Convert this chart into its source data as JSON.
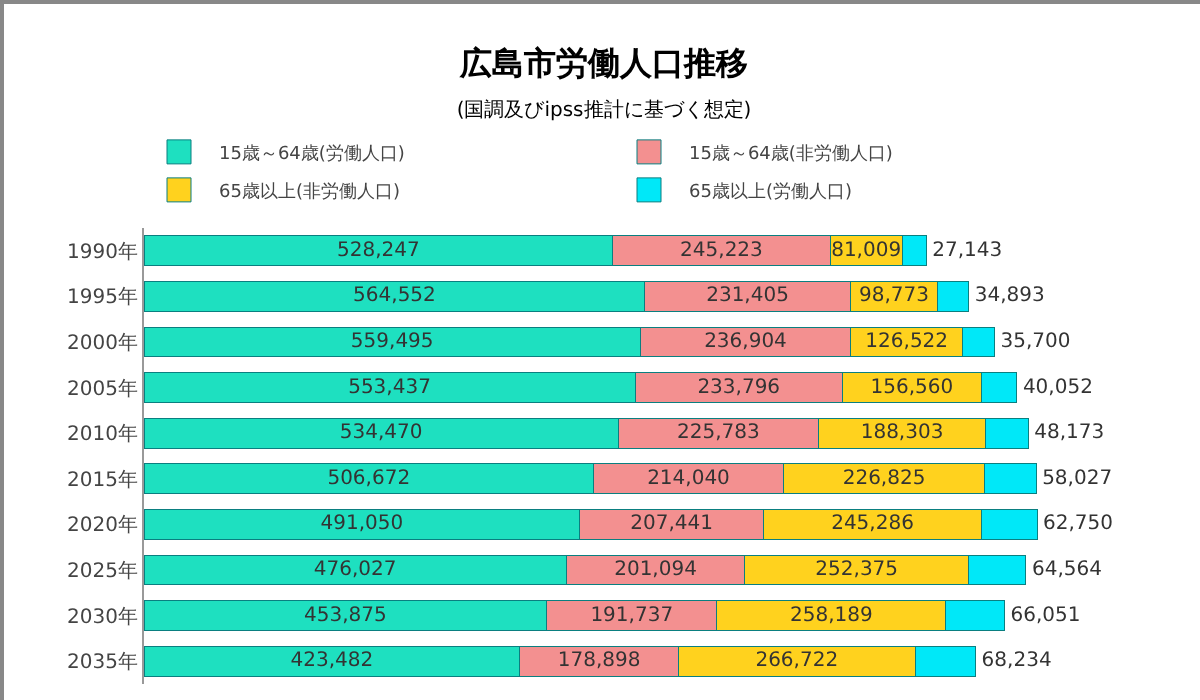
{
  "chart_data": {
    "type": "bar",
    "orientation": "horizontal",
    "stacked": true,
    "title": "広島市労働人口推移",
    "subtitle": "(国調及びipss推計に基づく想定)",
    "categories": [
      "1990年",
      "1995年",
      "2000年",
      "2005年",
      "2010年",
      "2015年",
      "2020年",
      "2025年",
      "2030年",
      "2035年"
    ],
    "series": [
      {
        "name": "15歳～64歳(労働人口)",
        "color": "#1ee0c0",
        "values": [
          528247,
          564552,
          559495,
          553437,
          534470,
          506672,
          491050,
          476027,
          453875,
          423482
        ],
        "value_labels": [
          "528,247",
          "564,552",
          "559,495",
          "553,437",
          "534,470",
          "506,672",
          "491,050",
          "476,027",
          "453,875",
          "423,482"
        ]
      },
      {
        "name": "15歳～64歳(非労働人口)",
        "color": "#f39090",
        "values": [
          245223,
          231405,
          236904,
          233796,
          225783,
          214040,
          207441,
          201094,
          191737,
          178898
        ],
        "value_labels": [
          "245,223",
          "231,405",
          "236,904",
          "233,796",
          "225,783",
          "214,040",
          "207,441",
          "201,094",
          "191,737",
          "178,898"
        ]
      },
      {
        "name": "65歳以上(非労働人口)",
        "color": "#ffd21e",
        "values": [
          81009,
          98773,
          126522,
          156560,
          188303,
          226825,
          245286,
          252375,
          258189,
          266722
        ],
        "value_labels": [
          "81,009",
          "98,773",
          "126,522",
          "156,560",
          "188,303",
          "226,825",
          "245,286",
          "252,375",
          "258,189",
          "266,722"
        ]
      },
      {
        "name": "65歳以上(労働人口)",
        "color": "#00e8f8",
        "values": [
          27143,
          34893,
          35700,
          40052,
          48173,
          58027,
          62750,
          64564,
          66051,
          68234
        ],
        "value_labels": [
          "27,143",
          "34,893",
          "35,700",
          "40,052",
          "48,173",
          "58,027",
          "62,750",
          "64,564",
          "66,051",
          "68,234"
        ]
      }
    ],
    "legend": "top",
    "grid": false
  }
}
